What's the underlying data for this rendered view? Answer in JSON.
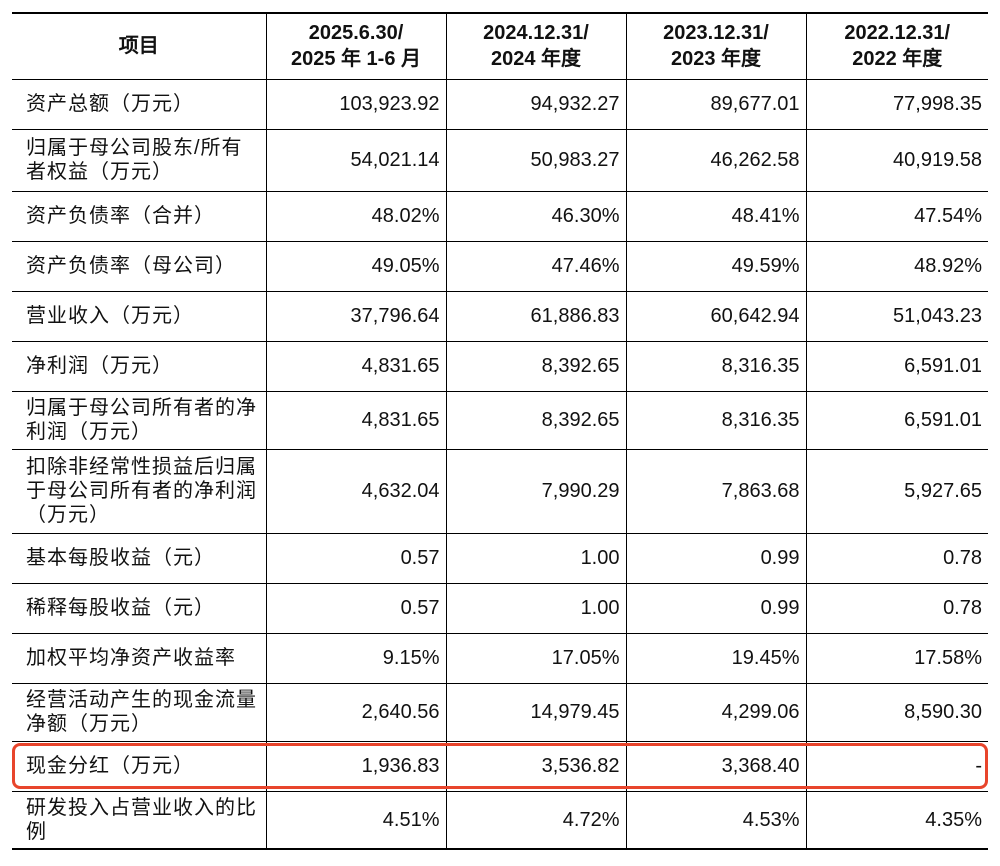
{
  "columns": [
    {
      "line1": "项目",
      "line2": ""
    },
    {
      "line1": "2025.6.30/",
      "line2": "2025 年 1-6 月"
    },
    {
      "line1": "2024.12.31/",
      "line2": "2024 年度"
    },
    {
      "line1": "2023.12.31/",
      "line2": "2023 年度"
    },
    {
      "line1": "2022.12.31/",
      "line2": "2022 年度"
    }
  ],
  "rows": [
    {
      "label": "资产总额（万元）",
      "values": [
        "103,923.92",
        "94,932.27",
        "89,677.01",
        "77,998.35"
      ]
    },
    {
      "label": "归属于母公司股东/所有者权益（万元）",
      "values": [
        "54,021.14",
        "50,983.27",
        "46,262.58",
        "40,919.58"
      ]
    },
    {
      "label": "资产负债率（合并）",
      "values": [
        "48.02%",
        "46.30%",
        "48.41%",
        "47.54%"
      ]
    },
    {
      "label": "资产负债率（母公司）",
      "values": [
        "49.05%",
        "47.46%",
        "49.59%",
        "48.92%"
      ]
    },
    {
      "label": "营业收入（万元）",
      "values": [
        "37,796.64",
        "61,886.83",
        "60,642.94",
        "51,043.23"
      ]
    },
    {
      "label": "净利润（万元）",
      "values": [
        "4,831.65",
        "8,392.65",
        "8,316.35",
        "6,591.01"
      ]
    },
    {
      "label": "归属于母公司所有者的净利润（万元）",
      "values": [
        "4,831.65",
        "8,392.65",
        "8,316.35",
        "6,591.01"
      ]
    },
    {
      "label": "扣除非经常性损益后归属于母公司所有者的净利润（万元）",
      "values": [
        "4,632.04",
        "7,990.29",
        "7,863.68",
        "5,927.65"
      ]
    },
    {
      "label": "基本每股收益（元）",
      "values": [
        "0.57",
        "1.00",
        "0.99",
        "0.78"
      ]
    },
    {
      "label": "稀释每股收益（元）",
      "values": [
        "0.57",
        "1.00",
        "0.99",
        "0.78"
      ]
    },
    {
      "label": "加权平均净资产收益率",
      "values": [
        "9.15%",
        "17.05%",
        "19.45%",
        "17.58%"
      ]
    },
    {
      "label": "经营活动产生的现金流量净额（万元）",
      "values": [
        "2,640.56",
        "14,979.45",
        "4,299.06",
        "8,590.30"
      ]
    },
    {
      "label": "现金分红（万元）",
      "values": [
        "1,936.83",
        "3,536.82",
        "3,368.40",
        "-"
      ]
    },
    {
      "label": "研发投入占营业收入的比例",
      "values": [
        "4.51%",
        "4.72%",
        "4.53%",
        "4.35%"
      ]
    }
  ],
  "colors": {
    "highlight": "#e8452c",
    "border": "#000000"
  }
}
